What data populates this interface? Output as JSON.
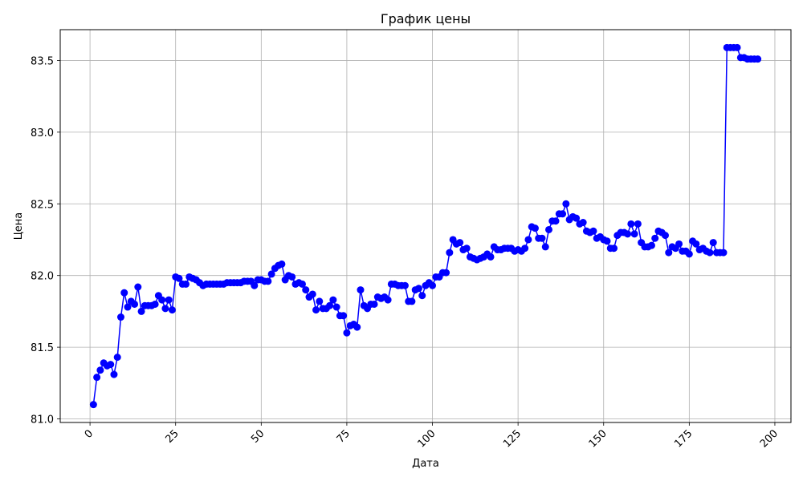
{
  "chart_data": {
    "type": "line",
    "title": "График цены",
    "xlabel": "Дата",
    "ylabel": "Цена",
    "xlim": [
      -8.7,
      204.7
    ],
    "ylim": [
      80.975,
      83.715
    ],
    "xticks": [
      0,
      25,
      50,
      75,
      100,
      125,
      150,
      175,
      200
    ],
    "yticks": [
      81.0,
      81.5,
      82.0,
      82.5,
      83.0,
      83.5
    ],
    "xtick_labels": [
      "0",
      "25",
      "50",
      "75",
      "100",
      "125",
      "150",
      "175",
      "200"
    ],
    "ytick_labels": [
      "81.0",
      "81.5",
      "82.0",
      "82.5",
      "83.0",
      "83.5"
    ],
    "grid": true,
    "color": "#0000ff",
    "marker": "circle",
    "series": [
      {
        "x": [
          1,
          2,
          3,
          4,
          5,
          6,
          7,
          8,
          9,
          10,
          11,
          12,
          13,
          14,
          15,
          16,
          17,
          18,
          19,
          20,
          21,
          22,
          23,
          24,
          25,
          26,
          27,
          28,
          29,
          30,
          31,
          32,
          33,
          34,
          35,
          36,
          37,
          38,
          39,
          40,
          41,
          42,
          43,
          44,
          45,
          46,
          47,
          48,
          49,
          50,
          51,
          52,
          53,
          54,
          55,
          56,
          57,
          58,
          59,
          60,
          61,
          62,
          63,
          64,
          65,
          66,
          67,
          68,
          69,
          70,
          71,
          72,
          73,
          74,
          75,
          76,
          77,
          78,
          79,
          80,
          81,
          82,
          83,
          84,
          85,
          86,
          87,
          88,
          89,
          90,
          91,
          92,
          93,
          94,
          95,
          96,
          97,
          98,
          99,
          100,
          101,
          102,
          103,
          104,
          105,
          106,
          107,
          108,
          109,
          110,
          111,
          112,
          113,
          114,
          115,
          116,
          117,
          118,
          119,
          120,
          121,
          122,
          123,
          124,
          125,
          126,
          127,
          128,
          129,
          130,
          131,
          132,
          133,
          134,
          135,
          136,
          137,
          138,
          139,
          140,
          141,
          142,
          143,
          144,
          145,
          146,
          147,
          148,
          149,
          150,
          151,
          152,
          153,
          154,
          155,
          156,
          157,
          158,
          159,
          160,
          161,
          162,
          163,
          164,
          165,
          166,
          167,
          168,
          169,
          170,
          171,
          172,
          173,
          174,
          175,
          176,
          177,
          178,
          179,
          180,
          181,
          182,
          183,
          184,
          185,
          186,
          187,
          188,
          189,
          190,
          191,
          192,
          193,
          194,
          195
        ],
        "values": [
          81.1,
          81.29,
          81.34,
          81.39,
          81.37,
          81.38,
          81.31,
          81.43,
          81.71,
          81.88,
          81.78,
          81.82,
          81.8,
          81.92,
          81.75,
          81.79,
          81.79,
          81.79,
          81.8,
          81.86,
          81.83,
          81.77,
          81.83,
          81.76,
          81.99,
          81.98,
          81.94,
          81.94,
          81.99,
          81.98,
          81.97,
          81.95,
          81.93,
          81.94,
          81.94,
          81.94,
          81.94,
          81.94,
          81.94,
          81.95,
          81.95,
          81.95,
          81.95,
          81.95,
          81.96,
          81.96,
          81.96,
          81.93,
          81.97,
          81.97,
          81.96,
          81.96,
          82.01,
          82.05,
          82.07,
          82.08,
          81.97,
          82.0,
          81.99,
          81.94,
          81.95,
          81.94,
          81.9,
          81.85,
          81.87,
          81.76,
          81.82,
          81.77,
          81.77,
          81.79,
          81.83,
          81.78,
          81.72,
          81.72,
          81.6,
          81.65,
          81.66,
          81.64,
          81.9,
          81.79,
          81.77,
          81.8,
          81.8,
          81.85,
          81.84,
          81.85,
          81.83,
          81.94,
          81.94,
          81.93,
          81.93,
          81.93,
          81.82,
          81.82,
          81.9,
          81.91,
          81.86,
          81.93,
          81.95,
          81.93,
          81.99,
          81.99,
          82.02,
          82.02,
          82.16,
          82.25,
          82.22,
          82.23,
          82.18,
          82.19,
          82.13,
          82.12,
          82.11,
          82.12,
          82.13,
          82.15,
          82.13,
          82.2,
          82.18,
          82.18,
          82.19,
          82.19,
          82.19,
          82.17,
          82.18,
          82.17,
          82.19,
          82.25,
          82.34,
          82.33,
          82.26,
          82.26,
          82.2,
          82.32,
          82.38,
          82.38,
          82.43,
          82.43,
          82.5,
          82.39,
          82.41,
          82.4,
          82.36,
          82.37,
          82.31,
          82.3,
          82.31,
          82.26,
          82.27,
          82.25,
          82.24,
          82.19,
          82.19,
          82.28,
          82.3,
          82.3,
          82.29,
          82.36,
          82.29,
          82.36,
          82.23,
          82.2,
          82.2,
          82.21,
          82.26,
          82.31,
          82.3,
          82.28,
          82.16,
          82.2,
          82.19,
          82.22,
          82.17,
          82.17,
          82.15,
          82.24,
          82.22,
          82.18,
          82.19,
          82.17,
          82.16,
          82.23,
          82.16,
          82.16,
          82.16,
          83.59,
          83.59,
          83.59,
          83.59,
          83.52,
          83.52,
          83.51,
          83.51,
          83.51,
          83.51
        ]
      }
    ]
  }
}
